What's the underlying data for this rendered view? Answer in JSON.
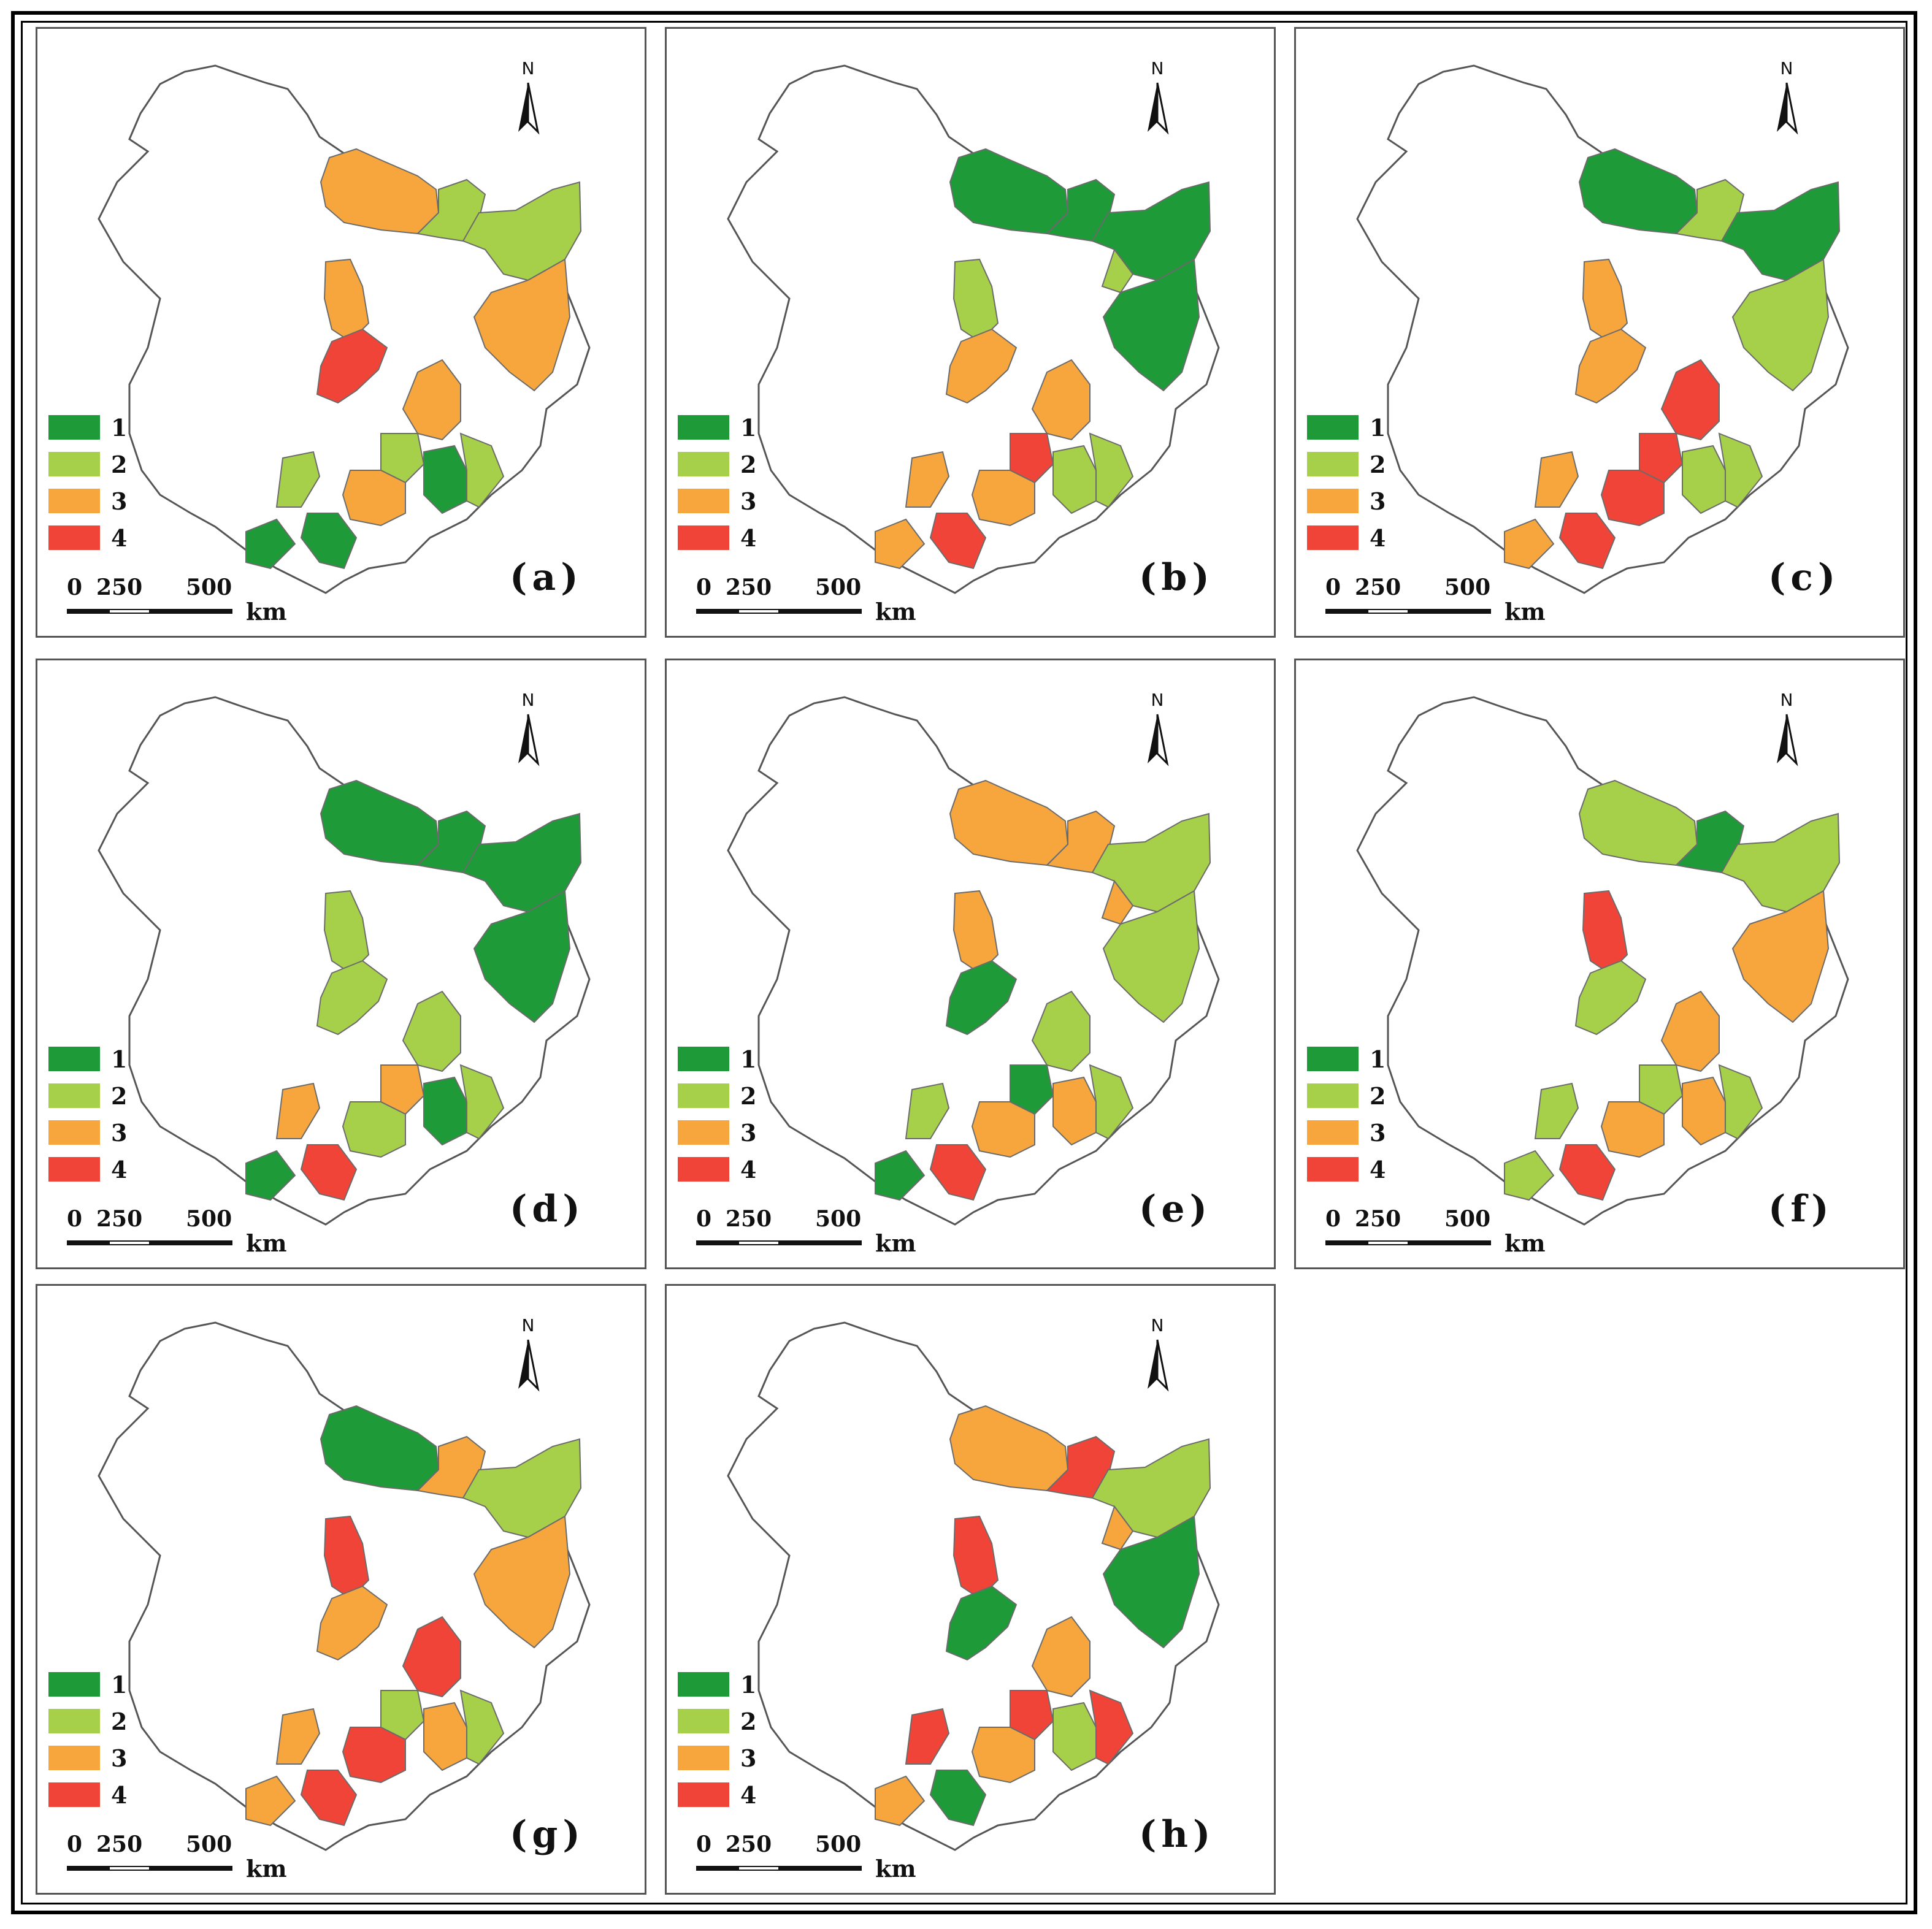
{
  "legend": {
    "items": [
      {
        "label": "1",
        "color": "#1e9a38"
      },
      {
        "label": "2",
        "color": "#a6cf4a"
      },
      {
        "label": "3",
        "color": "#f6a63c"
      },
      {
        "label": "4",
        "color": "#ef4437"
      }
    ]
  },
  "scale": {
    "zero": "0",
    "mid": "250",
    "max": "500",
    "unit": "km"
  },
  "north": "N",
  "outline_color": "#555555",
  "panels": [
    {
      "id": "a",
      "label": "(a)",
      "classes": {
        "hlj_n": 3,
        "hlj_ne": 2,
        "hlj_e": 2,
        "hlj_se": 3,
        "jl_nw": 3,
        "jl_red": 4,
        "jl_c": 3,
        "jl_e1": 2,
        "jl_e2": 1,
        "jl_e3": 2,
        "ln_w": 2,
        "ln_c": 3,
        "ln_sw": 1,
        "ln_s": 1
      }
    },
    {
      "id": "b",
      "label": "(b)",
      "classes": {
        "hlj_n": 1,
        "hlj_ne": 1,
        "hlj_e": 1,
        "hlj_se": 1,
        "hlj_mid": 2,
        "jl_nw": 2,
        "jl_red": 3,
        "jl_c": 3,
        "jl_e1": 4,
        "jl_e2": 2,
        "jl_e3": 2,
        "ln_w": 3,
        "ln_c": 3,
        "ln_sw": 3,
        "ln_s": 4
      }
    },
    {
      "id": "c",
      "label": "(c)",
      "classes": {
        "hlj_n": 1,
        "hlj_ne": 2,
        "hlj_e": 1,
        "hlj_se": 2,
        "jl_nw": 3,
        "jl_red": 3,
        "jl_c": 4,
        "jl_e1": 4,
        "jl_e2": 2,
        "jl_e3": 2,
        "ln_w": 3,
        "ln_c": 4,
        "ln_sw": 3,
        "ln_s": 4
      }
    },
    {
      "id": "d",
      "label": "(d)",
      "classes": {
        "hlj_n": 1,
        "hlj_ne": 1,
        "hlj_e": 1,
        "hlj_se": 1,
        "jl_nw": 2,
        "jl_red": 2,
        "jl_c": 2,
        "jl_e1": 3,
        "jl_e2": 1,
        "jl_e3": 2,
        "ln_w": 3,
        "ln_c": 2,
        "ln_sw": 1,
        "ln_s": 4
      }
    },
    {
      "id": "e",
      "label": "(e)",
      "classes": {
        "hlj_n": 3,
        "hlj_ne": 3,
        "hlj_e": 2,
        "hlj_se": 2,
        "hlj_mid": 3,
        "jl_nw": 3,
        "jl_red": 1,
        "jl_c": 2,
        "jl_e1": 1,
        "jl_e2": 3,
        "jl_e3": 2,
        "ln_w": 2,
        "ln_c": 3,
        "ln_sw": 1,
        "ln_s": 4
      }
    },
    {
      "id": "f",
      "label": "(f)",
      "classes": {
        "hlj_n": 2,
        "hlj_ne": 1,
        "hlj_e": 2,
        "hlj_se": 3,
        "jl_nw": 4,
        "jl_red": 2,
        "jl_c": 3,
        "jl_e1": 2,
        "jl_e2": 3,
        "jl_e3": 2,
        "ln_w": 2,
        "ln_c": 3,
        "ln_sw": 2,
        "ln_s": 4
      }
    },
    {
      "id": "g",
      "label": "(g)",
      "classes": {
        "hlj_n": 1,
        "hlj_ne": 3,
        "hlj_e": 2,
        "hlj_se": 3,
        "jl_nw": 4,
        "jl_red": 3,
        "jl_c": 4,
        "jl_e1": 2,
        "jl_e2": 3,
        "jl_e3": 2,
        "ln_w": 3,
        "ln_c": 4,
        "ln_sw": 3,
        "ln_s": 4
      }
    },
    {
      "id": "h",
      "label": "(h)",
      "classes": {
        "hlj_n": 3,
        "hlj_ne": 4,
        "hlj_e": 2,
        "hlj_se": 1,
        "hlj_mid": 3,
        "jl_nw": 4,
        "jl_red": 1,
        "jl_c": 3,
        "jl_e1": 4,
        "jl_e2": 2,
        "jl_e3": 4,
        "ln_w": 4,
        "ln_c": 3,
        "ln_sw": 3,
        "ln_s": 1
      }
    }
  ]
}
